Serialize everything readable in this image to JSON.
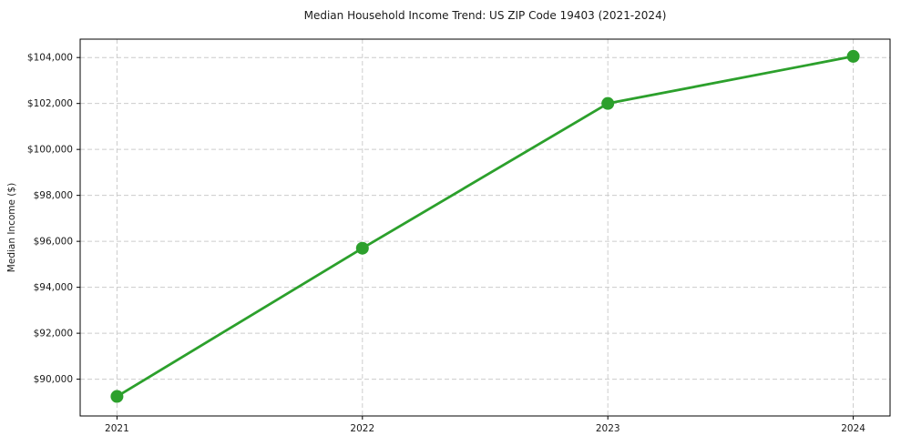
{
  "chart_data": {
    "type": "line",
    "title": "Median Household Income Trend: US ZIP Code 19403 (2021-2024)",
    "xlabel": "",
    "ylabel": "Median Income ($)",
    "categories": [
      "2021",
      "2022",
      "2023",
      "2024"
    ],
    "values": [
      89250,
      95700,
      102000,
      104050
    ],
    "ylim": [
      88400,
      104800
    ],
    "y_ticks": [
      {
        "value": 90000,
        "label": "$90,000"
      },
      {
        "value": 92000,
        "label": "$92,000"
      },
      {
        "value": 94000,
        "label": "$94,000"
      },
      {
        "value": 96000,
        "label": "$96,000"
      },
      {
        "value": 98000,
        "label": "$98,000"
      },
      {
        "value": 100000,
        "label": "$100,000"
      },
      {
        "value": 102000,
        "label": "$102,000"
      },
      {
        "value": 104000,
        "label": "$104,000"
      }
    ],
    "grid": true,
    "grid_style": "dashed",
    "legend": false,
    "marker": "circle",
    "colors": {
      "line": "#2ca02c",
      "marker": "#2ca02c",
      "grid": "#cccccc",
      "spine": "#000000",
      "text": "#1a1a1a",
      "background": "#ffffff"
    }
  }
}
